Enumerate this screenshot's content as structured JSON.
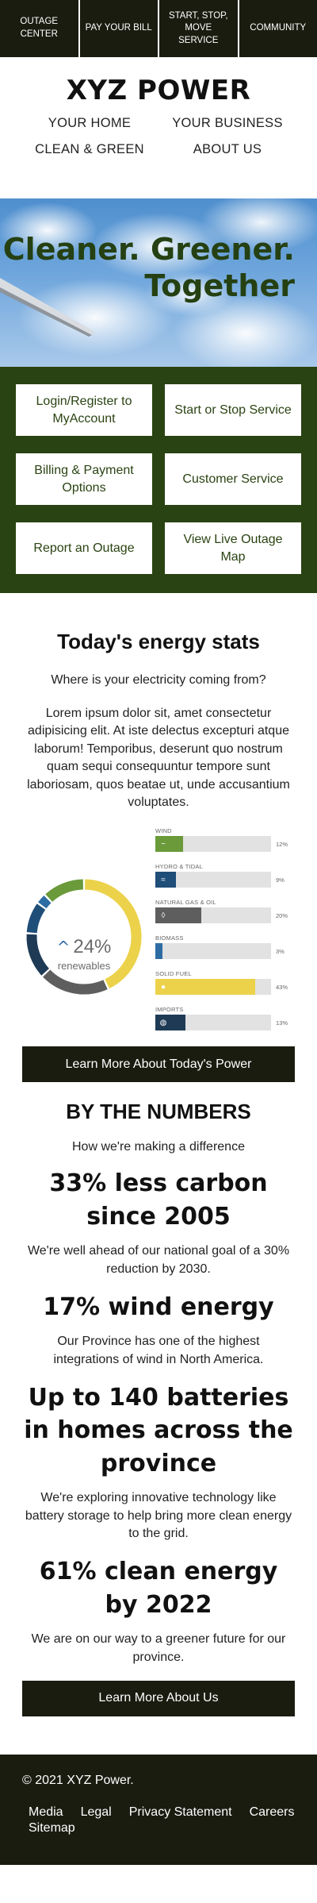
{
  "utility_nav": [
    "OUTAGE CENTER",
    "PAY YOUR BILL",
    "START, STOP, MOVE SERVICE",
    "COMMUNITY"
  ],
  "brand": "XYZ POWER",
  "main_nav": [
    "YOUR HOME",
    "YOUR BUSINESS",
    "CLEAN & GREEN",
    "ABOUT US"
  ],
  "hero": {
    "line1": "Cleaner. Greener.",
    "line2": "Together"
  },
  "quick_links": [
    "Login/Register to MyAccount",
    "Start or Stop Service",
    "Billing & Payment Options",
    "Customer Service",
    "Report an Outage",
    "View Live Outage Map"
  ],
  "stats": {
    "title": "Today's energy stats",
    "subtitle": "Where is your electricity coming from?",
    "body": "Lorem ipsum dolor sit, amet consectetur adipisicing elit. At iste delectus excepturi atque laborum! Temporibus, deserunt quo nostrum quam sequi consequuntur tempore sunt laboriosam, quos beatae ut, unde accusantium voluptates.",
    "renewables_pct": "24%",
    "renewables_label": "renewables",
    "cta": "Learn More About Today's Power"
  },
  "chart_data": {
    "type": "bar",
    "categories": [
      "WIND",
      "HYDRO & TIDAL",
      "NATURAL GAS & OIL",
      "BIOMASS",
      "SOLID FUEL",
      "IMPORTS"
    ],
    "values": [
      12,
      9,
      20,
      3,
      43,
      13
    ],
    "value_labels": [
      "12%",
      "9%",
      "20%",
      "3%",
      "43%",
      "13%"
    ],
    "colors": [
      "#6a9a3a",
      "#1f4e79",
      "#5e5e5e",
      "#2e6da4",
      "#ecd24a",
      "#1f3a55"
    ],
    "icons": [
      "wind-icon",
      "water-icon",
      "flame-icon",
      "leaf-icon",
      "coal-icon",
      "globe-icon"
    ],
    "ylim": [
      0,
      50
    ]
  },
  "numbers": {
    "title": "BY THE NUMBERS",
    "subtitle": "How we're making a difference",
    "facts": [
      {
        "head": "33% less carbon since 2005",
        "body": "We're well ahead of our national goal of a 30% reduction by 2030."
      },
      {
        "head": "17% wind energy",
        "body": "Our Province has one of the highest integrations of wind in North America."
      },
      {
        "head": "Up to 140 batteries in homes across the province",
        "body": "We're exploring innovative technology like battery storage to help bring more clean energy to the grid."
      },
      {
        "head": "61% clean energy by 2022",
        "body": "We are on our way to a greener future for our province."
      }
    ],
    "cta": "Learn More About Us"
  },
  "footer": {
    "copyright": "© 2021 XYZ Power.",
    "links": [
      "Media",
      "Legal",
      "Privacy Statement",
      "Careers",
      "Sitemap"
    ]
  }
}
